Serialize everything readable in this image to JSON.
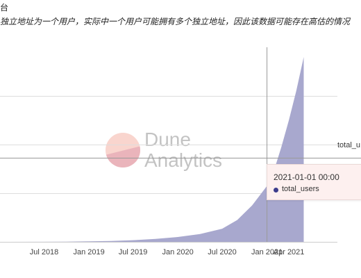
{
  "header": {
    "title": "台",
    "subtitle": "独立地址为一个用户，实际中一个用户可能拥有多个独立地址，因此该数据可能存在高估的情况"
  },
  "watermark": {
    "line1": "Dune",
    "line2": "Analytics"
  },
  "legend": {
    "right_label": "total_u"
  },
  "tooltip": {
    "date": "2021-01-01 00:00",
    "series": "total_users"
  },
  "colors": {
    "area": "#a8a8ce",
    "crosshair": "#999999",
    "dot": "#3c3c8c",
    "axis": "#cccccc",
    "grid": "#dddddd"
  },
  "chart_data": {
    "type": "area",
    "x_tick_labels": [
      "Jul 2018",
      "Jan 2019",
      "Jul 2019",
      "Jan 2020",
      "Jul 2020",
      "Jan 2021",
      "Apr 2021"
    ],
    "x": [
      "2018-02-01",
      "2018-07-01",
      "2018-10-01",
      "2019-01-01",
      "2019-04-01",
      "2019-07-01",
      "2019-10-01",
      "2020-01-01",
      "2020-04-01",
      "2020-07-01",
      "2020-09-01",
      "2020-11-01",
      "2021-01-01",
      "2021-02-01",
      "2021-03-01",
      "2021-04-01",
      "2021-05-01",
      "2021-06-01"
    ],
    "series": [
      {
        "values": [
          0,
          0.2,
          0.4,
          1,
          1.8,
          3.5,
          6,
          10,
          16,
          27,
          45,
          75,
          115,
          150,
          195,
          250,
          310,
          380
        ]
      }
    ],
    "ylim": [
      0,
      400
    ],
    "grid": true,
    "crosshair_date": "2021-01-01"
  }
}
